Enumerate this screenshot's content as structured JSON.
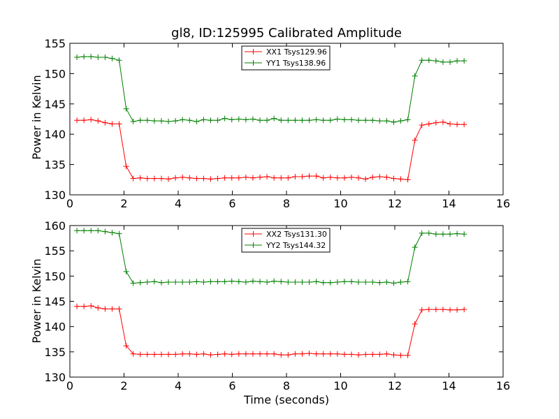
{
  "colors": {
    "red": "#ff0000",
    "green": "#008000",
    "axes": "#000000",
    "background": "#ffffff"
  },
  "chart_data": [
    {
      "type": "line",
      "title": "gl8, ID:125995 Calibrated Amplitude",
      "xlabel": "",
      "ylabel": "Power in Kelvin",
      "xlim": [
        0,
        16
      ],
      "ylim": [
        130,
        155
      ],
      "xticks": [
        0,
        2,
        4,
        6,
        8,
        10,
        12,
        14,
        16
      ],
      "yticks": [
        130,
        135,
        140,
        145,
        150,
        155
      ],
      "grid": false,
      "legend": "top-center",
      "x": [
        0.26,
        0.52,
        0.78,
        1.04,
        1.3,
        1.56,
        1.82,
        2.08,
        2.34,
        2.6,
        2.86,
        3.12,
        3.38,
        3.64,
        3.9,
        4.16,
        4.42,
        4.68,
        4.94,
        5.2,
        5.46,
        5.72,
        5.98,
        6.24,
        6.5,
        6.76,
        7.02,
        7.28,
        7.54,
        7.8,
        8.06,
        8.32,
        8.58,
        8.84,
        9.1,
        9.36,
        9.62,
        9.88,
        10.14,
        10.4,
        10.66,
        10.92,
        11.18,
        11.44,
        11.7,
        11.96,
        12.22,
        12.48,
        12.74,
        13.0,
        13.26,
        13.52,
        13.78,
        14.04,
        14.3,
        14.56
      ],
      "series": [
        {
          "name": "XX1 Tsys129.96",
          "color": "#ff0000",
          "values": [
            142.3,
            142.3,
            142.4,
            142.2,
            141.9,
            141.7,
            141.7,
            134.7,
            132.7,
            132.8,
            132.7,
            132.7,
            132.7,
            132.6,
            132.8,
            132.9,
            132.8,
            132.7,
            132.7,
            132.6,
            132.7,
            132.8,
            132.8,
            132.8,
            132.9,
            132.8,
            132.9,
            133.0,
            132.8,
            132.8,
            132.8,
            133.0,
            133.0,
            133.1,
            133.1,
            132.8,
            132.9,
            132.8,
            132.8,
            132.9,
            132.8,
            132.6,
            132.9,
            133.0,
            132.9,
            132.7,
            132.6,
            132.5,
            139.0,
            141.5,
            141.7,
            141.9,
            142.0,
            141.7,
            141.6,
            141.6
          ]
        },
        {
          "name": "YY1 Tsys138.96",
          "color": "#008000",
          "values": [
            152.7,
            152.8,
            152.8,
            152.7,
            152.7,
            152.5,
            152.2,
            144.2,
            142.1,
            142.3,
            142.3,
            142.2,
            142.2,
            142.1,
            142.2,
            142.4,
            142.3,
            142.1,
            142.4,
            142.3,
            142.3,
            142.6,
            142.4,
            142.5,
            142.4,
            142.5,
            142.3,
            142.3,
            142.6,
            142.3,
            142.3,
            142.3,
            142.3,
            142.3,
            142.4,
            142.3,
            142.3,
            142.5,
            142.4,
            142.4,
            142.3,
            142.3,
            142.3,
            142.2,
            142.2,
            142.0,
            142.2,
            142.4,
            149.6,
            152.2,
            152.2,
            152.1,
            151.9,
            151.9,
            152.1,
            152.1
          ]
        }
      ]
    },
    {
      "type": "line",
      "title": "",
      "xlabel": "Time (seconds)",
      "ylabel": "Power in Kelvin",
      "xlim": [
        0,
        16
      ],
      "ylim": [
        130,
        160
      ],
      "xticks": [
        0,
        2,
        4,
        6,
        8,
        10,
        12,
        14,
        16
      ],
      "yticks": [
        130,
        135,
        140,
        145,
        150,
        155,
        160
      ],
      "grid": false,
      "legend": "top-center",
      "x": [
        0.26,
        0.52,
        0.78,
        1.04,
        1.3,
        1.56,
        1.82,
        2.08,
        2.34,
        2.6,
        2.86,
        3.12,
        3.38,
        3.64,
        3.9,
        4.16,
        4.42,
        4.68,
        4.94,
        5.2,
        5.46,
        5.72,
        5.98,
        6.24,
        6.5,
        6.76,
        7.02,
        7.28,
        7.54,
        7.8,
        8.06,
        8.32,
        8.58,
        8.84,
        9.1,
        9.36,
        9.62,
        9.88,
        10.14,
        10.4,
        10.66,
        10.92,
        11.18,
        11.44,
        11.7,
        11.96,
        12.22,
        12.48,
        12.74,
        13.0,
        13.26,
        13.52,
        13.78,
        14.04,
        14.3,
        14.56
      ],
      "series": [
        {
          "name": "XX2 Tsys131.30",
          "color": "#ff0000",
          "values": [
            144.0,
            144.0,
            144.1,
            143.7,
            143.5,
            143.5,
            143.5,
            136.2,
            134.6,
            134.5,
            134.5,
            134.5,
            134.5,
            134.5,
            134.5,
            134.6,
            134.6,
            134.5,
            134.6,
            134.4,
            134.5,
            134.6,
            134.5,
            134.6,
            134.6,
            134.6,
            134.6,
            134.6,
            134.6,
            134.4,
            134.4,
            134.6,
            134.6,
            134.7,
            134.6,
            134.6,
            134.6,
            134.6,
            134.5,
            134.5,
            134.4,
            134.5,
            134.5,
            134.5,
            134.6,
            134.4,
            134.3,
            134.3,
            140.5,
            143.3,
            143.4,
            143.4,
            143.4,
            143.3,
            143.3,
            143.4
          ]
        },
        {
          "name": "YY2 Tsys144.32",
          "color": "#008000",
          "values": [
            159.0,
            159.0,
            159.0,
            159.0,
            158.8,
            158.6,
            158.4,
            150.9,
            148.6,
            148.7,
            148.8,
            148.9,
            148.7,
            148.8,
            148.8,
            148.8,
            148.8,
            148.9,
            148.8,
            148.9,
            148.9,
            148.9,
            149.0,
            148.9,
            148.8,
            149.0,
            148.9,
            148.8,
            149.0,
            148.9,
            148.8,
            148.8,
            148.8,
            148.8,
            148.9,
            148.7,
            148.7,
            148.8,
            148.9,
            148.9,
            148.8,
            148.8,
            148.8,
            148.7,
            148.8,
            148.6,
            148.8,
            148.9,
            155.7,
            158.5,
            158.5,
            158.3,
            158.3,
            158.3,
            158.4,
            158.3
          ]
        }
      ]
    }
  ]
}
